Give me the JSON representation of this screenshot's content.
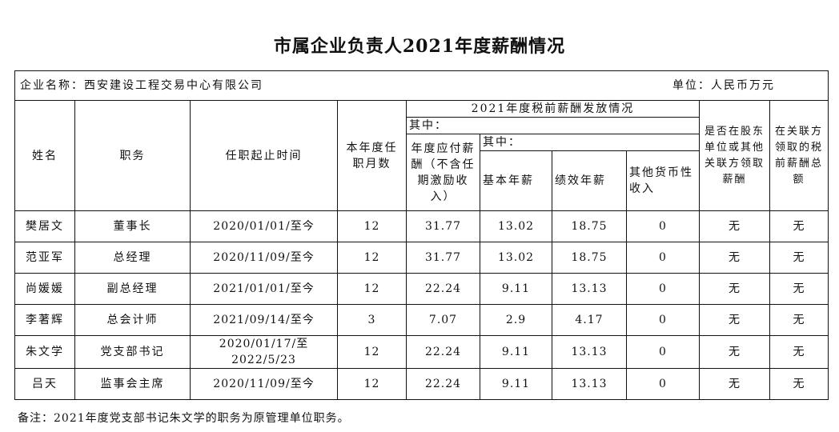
{
  "title": "市属企业负责人2021年度薪酬情况",
  "company_label": "企业名称：西安建设工程交易中心有限公司",
  "unit_label": "单位：人民币万元",
  "headers": {
    "name": "姓名",
    "position": "职务",
    "term": "任职起止时间",
    "months": "本年度任职月数",
    "group": "2021年度税前薪酬发放情况",
    "of_which_1": "其中：",
    "annual_payable": "年度应付薪酬（不含任期激励收入）",
    "of_which_2": "其中：",
    "basic": "基本年薪",
    "performance": "绩效年薪",
    "other_monetary": "其他货币性收入",
    "shareholder": "是否在股东单位或其他关联方领取薪酬",
    "related_total": "在关联方领取的税前薪酬总额"
  },
  "rows": [
    [
      "樊居文",
      "董事长",
      "2020/01/01/至今",
      "12",
      "31.77",
      "13.02",
      "18.75",
      "0",
      "无",
      "无"
    ],
    [
      "范亚军",
      "总经理",
      "2020/11/09/至今",
      "12",
      "31.77",
      "13.02",
      "18.75",
      "0",
      "无",
      "无"
    ],
    [
      "尚媛媛",
      "副总经理",
      "2021/01/01/至今",
      "12",
      "22.24",
      "9.11",
      "13.13",
      "0",
      "无",
      "无"
    ],
    [
      "李著辉",
      "总会计师",
      "2021/09/14/至今",
      "3",
      "7.07",
      "2.9",
      "4.17",
      "0",
      "无",
      "无"
    ],
    [
      "朱文学",
      "党支部书记",
      "2020/01/17/至2022/5/23",
      "12",
      "22.24",
      "9.11",
      "13.13",
      "0",
      "无",
      "无"
    ],
    [
      "吕天",
      "监事会主席",
      "2020/11/09/至今",
      "12",
      "22.24",
      "9.11",
      "13.13",
      "0",
      "无",
      "无"
    ]
  ],
  "note": "备注：2021年度党支部书记朱文学的职务为原管理单位职务。"
}
